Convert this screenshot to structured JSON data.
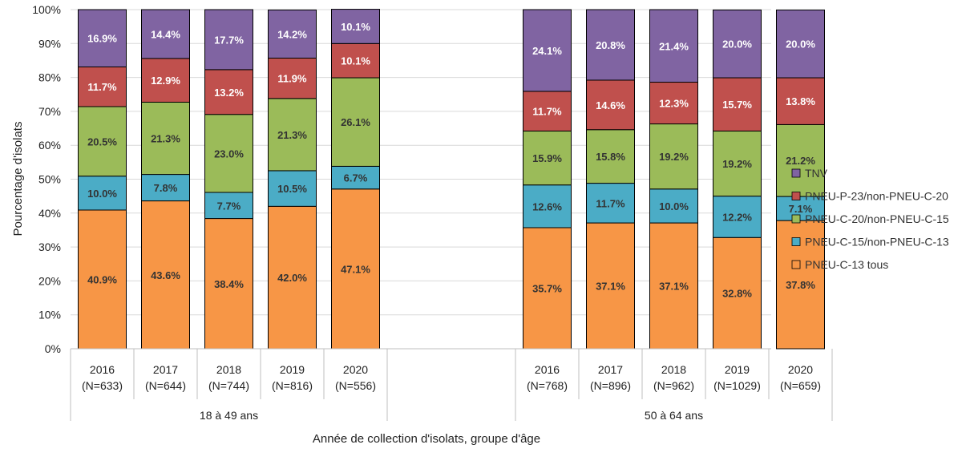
{
  "chart_data": {
    "type": "bar",
    "stacked": true,
    "percent": true,
    "title": "",
    "xlabel": "Année de collection d'isolats, groupe d'âge",
    "ylabel": "Pourcentage d'isolats",
    "ylim": [
      0,
      100
    ],
    "ytick_labels": [
      "0%",
      "10%",
      "20%",
      "30%",
      "40%",
      "50%",
      "60%",
      "70%",
      "80%",
      "90%",
      "100%"
    ],
    "grid": true,
    "legend_position": "right",
    "groups": [
      {
        "label": "18 à 49 ans",
        "categories": [
          {
            "year": "2016",
            "n": "(N=633)"
          },
          {
            "year": "2017",
            "n": "(N=644)"
          },
          {
            "year": "2018",
            "n": "(N=744)"
          },
          {
            "year": "2019",
            "n": "(N=816)"
          },
          {
            "year": "2020",
            "n": "(N=556)"
          }
        ]
      },
      {
        "label": "50 à 64 ans",
        "categories": [
          {
            "year": "2016",
            "n": "(N=768)"
          },
          {
            "year": "2017",
            "n": "(N=896)"
          },
          {
            "year": "2018",
            "n": "(N=962)"
          },
          {
            "year": "2019",
            "n": "(N=1029)"
          },
          {
            "year": "2020",
            "n": "(N=659)"
          }
        ]
      }
    ],
    "series": [
      {
        "name": "PNEU-C-13 tous",
        "color": "#f79646",
        "label_color": "#333333",
        "values": [
          40.9,
          43.6,
          38.4,
          42.0,
          47.1,
          35.7,
          37.1,
          37.1,
          32.8,
          37.8
        ],
        "labels": [
          "40.9%",
          "43.6%",
          "38.4%",
          "42.0%",
          "47.1%",
          "35.7%",
          "37.1%",
          "37.1%",
          "32.8%",
          "37.8%"
        ]
      },
      {
        "name": "PNEU-C-15/non-PNEU-C-13",
        "color": "#4bacc6",
        "label_color": "#333333",
        "values": [
          10.0,
          7.8,
          7.7,
          10.5,
          6.7,
          12.6,
          11.7,
          10.0,
          12.2,
          7.1
        ],
        "labels": [
          "10.0%",
          "7.8%",
          "7.7%",
          "10.5%",
          "6.7%",
          "12.6%",
          "11.7%",
          "10.0%",
          "12.2%",
          "7.1%"
        ]
      },
      {
        "name": "PNEU-C-20/non-PNEU-C-15",
        "color": "#9bbb59",
        "label_color": "#333333",
        "values": [
          20.5,
          21.3,
          23.0,
          21.3,
          26.1,
          15.9,
          15.8,
          19.2,
          19.2,
          21.2
        ],
        "labels": [
          "20.5%",
          "21.3%",
          "23.0%",
          "21.3%",
          "26.1%",
          "15.9%",
          "15.8%",
          "19.2%",
          "19.2%",
          "21.2%"
        ]
      },
      {
        "name": "PNEU-P-23/non-PNEU-C-20",
        "color": "#c0504d",
        "label_color": "#ffffff",
        "values": [
          11.7,
          12.9,
          13.2,
          11.9,
          10.1,
          11.7,
          14.6,
          12.3,
          15.7,
          13.8
        ],
        "labels": [
          "11.7%",
          "12.9%",
          "13.2%",
          "11.9%",
          "10.1%",
          "11.7%",
          "14.6%",
          "12.3%",
          "15.7%",
          "13.8%"
        ]
      },
      {
        "name": "TNV",
        "color": "#8064a2",
        "label_color": "#ffffff",
        "values": [
          16.9,
          14.4,
          17.7,
          14.2,
          10.1,
          24.1,
          20.8,
          21.4,
          20.0,
          20.0
        ],
        "labels": [
          "16.9%",
          "14.4%",
          "17.7%",
          "14.2%",
          "10.1%",
          "24.1%",
          "20.8%",
          "21.4%",
          "20.0%",
          "20.0%"
        ]
      }
    ]
  }
}
